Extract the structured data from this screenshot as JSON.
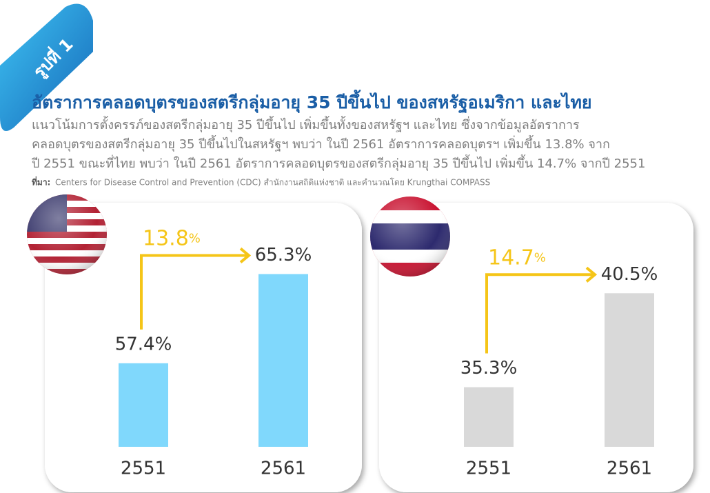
{
  "badge": "รูปที่ 1",
  "title": "อัตราการคลอดบุตรของสตรีกลุ่มอายุ 35 ปีขึ้นไป ของสหรัฐอเมริกา และไทย",
  "subtitle_lines": [
    "แนวโน้มการตั้งครรภ์ของสตรีกลุ่มอายุ 35 ปีขึ้นไป เพิ่มขึ้นทั้งของสหรัฐฯ และไทย ซึ่งจากข้อมูลอัตราการ",
    "คลอดบุตรของสตรีกลุ่มอายุ 35 ปีขึ้นไปในสหรัฐฯ พบว่า ในปี 2561 อัตราการคลอดบุตรฯ เพิ่มขึ้น 13.8% จาก",
    "ปี 2551 ขณะที่ไทย พบว่า ในปี 2561 อัตราการคลอดบุตรของสตรีกลุ่มอายุ 35 ปีขึ้นไป เพิ่มขึ้น 14.7% จากปี 2551"
  ],
  "source_label": "ที่มา:",
  "source": "Centers for Disease Control and Prevention (CDC)  สำนักงานสถิติแห่งชาติ และคำนวณโดย Krungthai COMPASS",
  "chart_data": [
    {
      "type": "bar",
      "categories": [
        "2551",
        "2561"
      ],
      "values": [
        57.4,
        65.3
      ],
      "value_labels": [
        "57.4%",
        "65.3%"
      ],
      "color": "#80d8fc",
      "ylim": [
        50,
        66
      ],
      "annotation": "13.8",
      "annotation_unit": "%",
      "flag": "us"
    },
    {
      "type": "bar",
      "categories": [
        "2551",
        "2561"
      ],
      "values": [
        35.3,
        40.5
      ],
      "value_labels": [
        "35.3%",
        "40.5%"
      ],
      "color": "#d9d9d9",
      "ylim": [
        32,
        42
      ],
      "annotation": "14.7",
      "annotation_unit": "%",
      "flag": "th"
    }
  ]
}
